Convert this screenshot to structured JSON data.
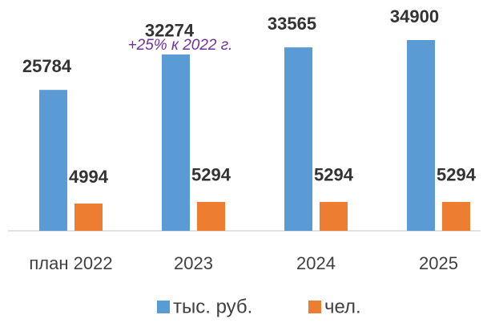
{
  "chart_data": {
    "type": "bar",
    "categories": [
      "план 2022",
      "2023",
      "2024",
      "2025"
    ],
    "series": [
      {
        "name": "тыс. руб.",
        "color": "#5b9bd5",
        "values": [
          25784,
          32274,
          33565,
          34900
        ]
      },
      {
        "name": "чел.",
        "color": "#ed7d31",
        "values": [
          4994,
          5294,
          5294,
          5294
        ]
      }
    ],
    "annotation": "+25% к 2022 г.",
    "legend": "bottom"
  }
}
